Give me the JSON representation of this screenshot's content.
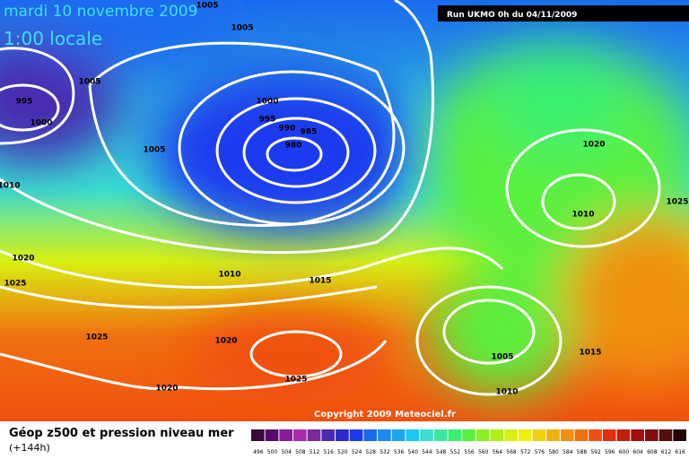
{
  "header": {
    "title": "mardi 10 novembre 2009",
    "subtitle": "1:00 locale",
    "run": "Run UKMO 0h du 04/11/2009"
  },
  "copyright": "Copyright 2009 Meteociel.fr",
  "footer": {
    "title": "Géop z500 et pression niveau mer",
    "range": "(+144h)"
  },
  "isobars": [
    "1005",
    "1005",
    "1005",
    "995",
    "1000",
    "1000",
    "995",
    "990",
    "985",
    "980",
    "1005",
    "1010",
    "1020",
    "1010",
    "1025",
    "1020",
    "1025",
    "1010",
    "1015",
    "1025",
    "1020",
    "1025",
    "1020",
    "1005",
    "1015",
    "1010"
  ],
  "legend": {
    "labels": [
      496,
      500,
      504,
      508,
      512,
      516,
      520,
      524,
      528,
      532,
      536,
      540,
      544,
      548,
      552,
      556,
      560,
      564,
      568,
      572,
      576,
      580,
      584,
      588,
      592,
      596,
      600,
      604,
      608,
      612,
      616
    ],
    "colors": [
      "#3a0a3a",
      "#5a0a6a",
      "#8a1a9a",
      "#aa2aaa",
      "#7a2a9a",
      "#4a2ab0",
      "#2a2ad0",
      "#1a3af0",
      "#1a6af0",
      "#1a8af0",
      "#1aa8f0",
      "#1ac8f0",
      "#3ae0d0",
      "#3ae8a0",
      "#3af070",
      "#5af040",
      "#8af020",
      "#b0f010",
      "#d8f010",
      "#f0f010",
      "#f0d010",
      "#f0b010",
      "#f09010",
      "#f07010",
      "#f05010",
      "#e03010",
      "#c02010",
      "#a01010",
      "#801010",
      "#501010",
      "#200808"
    ]
  }
}
